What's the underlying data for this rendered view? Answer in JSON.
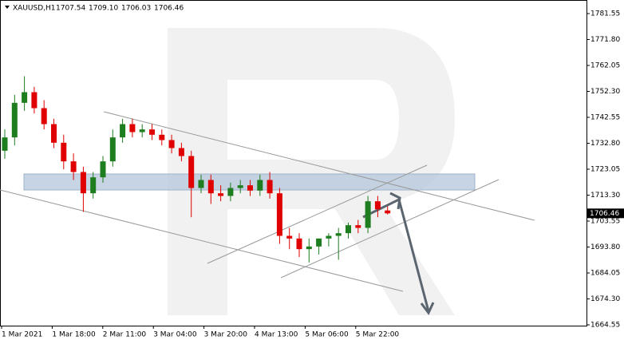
{
  "chart_data": {
    "type": "candlestick",
    "symbol": "XAUUSD,H1",
    "ohlc": [
      "1707.54",
      "1709.10",
      "1706.03",
      "1706.46"
    ],
    "last_price": 1706.46,
    "categories": [
      "1 Mar 2021",
      "1 Mar 18:00",
      "2 Mar 11:00",
      "3 Mar 04:00",
      "3 Mar 20:00",
      "4 Mar 13:00",
      "5 Mar 06:00",
      "5 Mar 22:00"
    ],
    "open": [
      1730,
      1735,
      1748,
      1752,
      1746,
      1740,
      1733,
      1726,
      1722,
      1714,
      1720,
      1726,
      1735,
      1740,
      1737,
      1738,
      1736,
      1734,
      1731,
      1728,
      1716,
      1719,
      1714,
      1713,
      1716,
      1717,
      1715,
      1719,
      1714,
      1698,
      1697,
      1693,
      1694,
      1697,
      1698,
      1699,
      1702,
      1701,
      1711,
      1707.54
    ],
    "high": [
      1738,
      1751,
      1758,
      1754,
      1749,
      1742,
      1736,
      1729,
      1724,
      1722,
      1728,
      1738,
      1742,
      1742,
      1740,
      1740,
      1738,
      1736,
      1733,
      1730,
      1721,
      1721,
      1717,
      1718,
      1719,
      1719,
      1721,
      1722,
      1716,
      1701,
      1699,
      1697,
      1697,
      1699,
      1701,
      1703,
      1704,
      1713,
      1713,
      1709.1
    ],
    "low": [
      1727,
      1732,
      1745,
      1744,
      1738,
      1731,
      1723,
      1719,
      1707,
      1712,
      1718,
      1724,
      1733,
      1735,
      1735,
      1734,
      1732,
      1729,
      1726,
      1705,
      1714,
      1710,
      1711,
      1711,
      1714,
      1713,
      1713,
      1712,
      1695,
      1693,
      1690,
      1688,
      1691,
      1694,
      1689,
      1697,
      1699,
      1699,
      1705,
      1706.03
    ],
    "close": [
      1735,
      1748,
      1752,
      1746,
      1740,
      1733,
      1726,
      1722,
      1714,
      1720,
      1726,
      1735,
      1740,
      1737,
      1738,
      1736,
      1734,
      1731,
      1728,
      1716,
      1719,
      1714,
      1713,
      1716,
      1717,
      1715,
      1719,
      1714,
      1698,
      1697,
      1693,
      1694,
      1697,
      1698,
      1699,
      1702,
      1701,
      1711,
      1708,
      1706.46
    ],
    "up_color": "#1e7d1e",
    "down_color": "#e00000",
    "ylim": [
      1664.25,
      1786.65
    ],
    "yticks": [
      1781.55,
      {
        "value": 1771.8,
        "label": "1771.80"
      },
      1762.05,
      {
        "value": 1752.3,
        "label": "1752.30"
      },
      1742.55,
      {
        "value": 1732.8,
        "label": "1732.80"
      },
      1723.05,
      {
        "value": 1713.3,
        "label": "1713.30"
      },
      1703.55,
      {
        "value": 1693.8,
        "label": "1693.80"
      },
      1684.05,
      {
        "value": 1674.3,
        "label": "1674.30"
      },
      1664.55
    ]
  }
}
